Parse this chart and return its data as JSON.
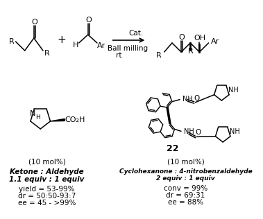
{
  "background_color": "#ffffff",
  "fig_width": 3.79,
  "fig_height": 3.16,
  "left_catalyst_label": "(10 mol%)",
  "right_catalyst_label": "(10 mol%)",
  "left_text_line1": "Ketone : Aldehyde",
  "left_text_line2": "1.1 equiv : 1 equiv",
  "left_text_line3": "yield = 53-99%",
  "left_text_line4": "dr = 50:50-93:7",
  "left_text_line5": "ee = 45 - >99%",
  "right_text_line1": "Cyclohexanone : 4-nitrobenzaldehyde",
  "right_text_line2": "2 equiv : 1 equiv",
  "right_text_line3": "conv = 99%",
  "right_text_line4": "dr = 69:31",
  "right_text_line5": "ee = 88%",
  "arrow_label_top": "Cat.",
  "arrow_label_mid": "Ball milling",
  "arrow_label_bot": "rt",
  "compound_number": "22"
}
